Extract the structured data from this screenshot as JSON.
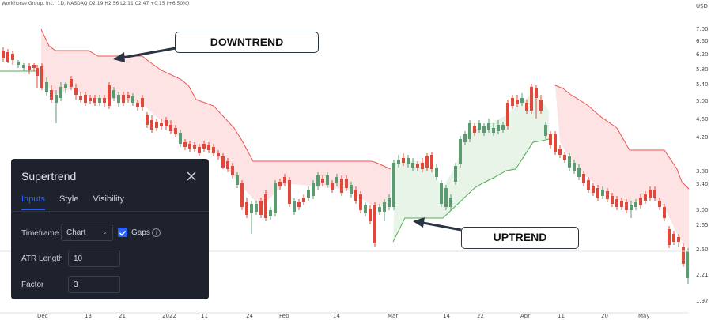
{
  "header": {
    "legend": "Workhorse Group, Inc., 1D, NASDAQ  O2.19  H2.56  L2.11  C2.47  +0.15 (+6.50%)",
    "currency": "USD"
  },
  "annotations": {
    "downtrend": "DOWNTREND",
    "uptrend": "UPTREND"
  },
  "colors": {
    "bull": "#5c9a72",
    "bear": "#e0483c",
    "supertrend_up": "#4caf50",
    "supertrend_down": "#ef5350",
    "fill_up": "#e8f4e8",
    "fill_down": "#fde3e3"
  },
  "chart_data": {
    "type": "candlestick",
    "y_ticks": [
      "7.00",
      "6.60",
      "6.20",
      "5.80",
      "5.40",
      "5.00",
      "4.60",
      "4.20",
      "3.80",
      "3.40",
      "3.00",
      "2.65",
      "2.50",
      "2.21",
      "1.97"
    ],
    "x_ticks": [
      "Dec",
      "13",
      "21",
      "2022",
      "11",
      "24",
      "Feb",
      "14",
      "Mar",
      "14",
      "22",
      "Apr",
      "11",
      "20",
      "May"
    ],
    "current_price": "2.50",
    "scale": "log"
  },
  "panel": {
    "title": "Supertrend",
    "tabs": [
      {
        "label": "Inputs",
        "active": true
      },
      {
        "label": "Style",
        "active": false
      },
      {
        "label": "Visibility",
        "active": false
      }
    ],
    "timeframe_label": "Timeframe",
    "timeframe_value": "Chart",
    "gaps_label": "Gaps",
    "gaps_checked": true,
    "atr_label": "ATR Length",
    "atr_value": "10",
    "factor_label": "Factor",
    "factor_value": "3"
  }
}
